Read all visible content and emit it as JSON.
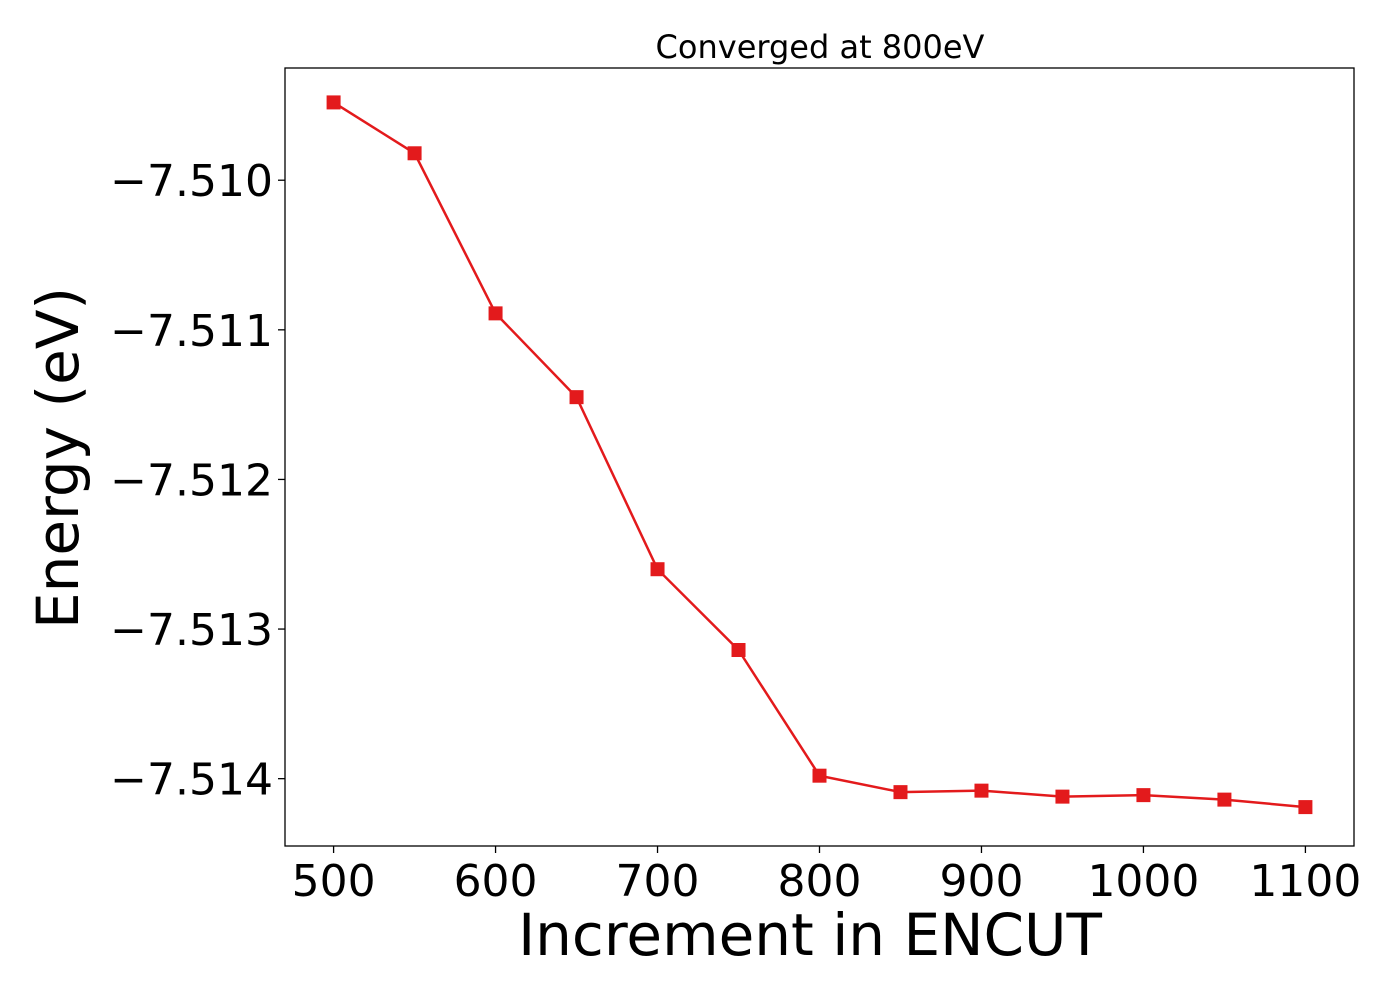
{
  "chart_data": {
    "type": "line",
    "title": "Converged at 800eV",
    "xlabel": "Increment in ENCUT",
    "ylabel": "Energy (eV)",
    "x": [
      500,
      550,
      600,
      650,
      700,
      750,
      800,
      850,
      900,
      950,
      1000,
      1050,
      1100
    ],
    "series": [
      {
        "values": [
          -7.50948,
          -7.50982,
          -7.51089,
          -7.51145,
          -7.5126,
          -7.51314,
          -7.51398,
          -7.51409,
          -7.51408,
          -7.51412,
          -7.51411,
          -7.51414,
          -7.51419
        ],
        "color": "#e31a1c",
        "marker": "square"
      }
    ],
    "xticks": [
      500,
      600,
      700,
      800,
      900,
      1000,
      1100
    ],
    "xtick_labels": [
      "500",
      "600",
      "700",
      "800",
      "900",
      "1000",
      "1100"
    ],
    "yticks": [
      -7.51,
      -7.511,
      -7.512,
      -7.513,
      -7.514
    ],
    "ytick_labels": [
      "−7.510",
      "−7.511",
      "−7.512",
      "−7.513",
      "−7.514"
    ],
    "xlim": [
      470,
      1130
    ],
    "ylim": [
      -7.51445,
      -7.50925
    ],
    "grid": false,
    "legend": false
  }
}
